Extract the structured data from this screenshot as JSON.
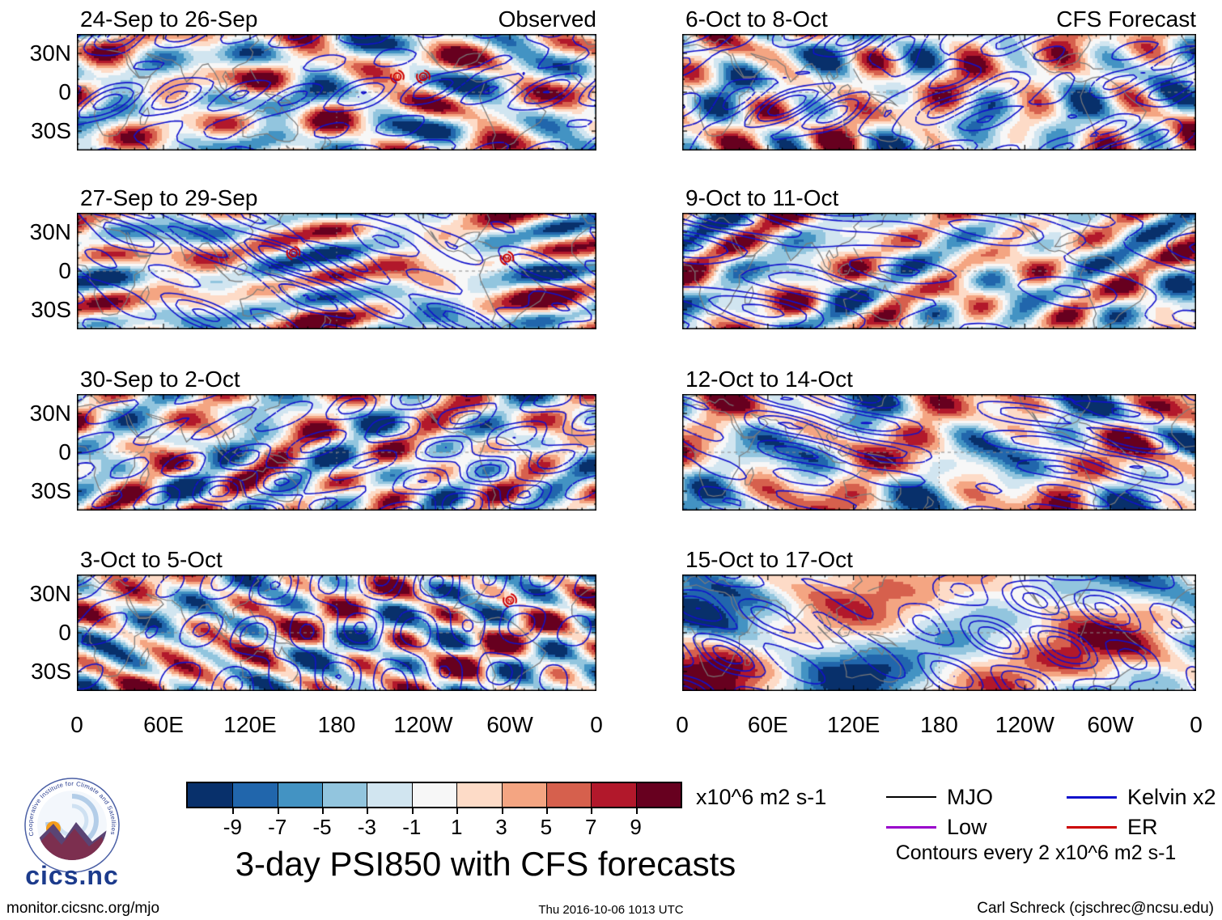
{
  "figure": {
    "title": "3-day PSI850 with CFS forecasts",
    "footer": {
      "left": "monitor.cicsnc.org/mjo",
      "center": "Thu 2016-10-06 1013 UTC",
      "right": "Carl Schreck (cjschrec@ncsu.edu)"
    },
    "logo": {
      "arc_text": "Cooperative Institute for Climate and Satellites",
      "wordmark": "cics.nc"
    }
  },
  "chart_data": {
    "type": "heatmap",
    "variable": "PSI850 anomaly (850 hPa streamfunction), 3-day means with CFS forecasts",
    "units": "x10^6 m2 s-1",
    "lat_range": [
      -45,
      45
    ],
    "lon_range": [
      0,
      360
    ],
    "columns": [
      {
        "header": "Observed"
      },
      {
        "header": "CFS Forecast"
      }
    ],
    "panels": [
      {
        "title": "24-Sep to 26-Sep",
        "corner": "Observed",
        "column": 0,
        "row": 0,
        "storms": [
          {
            "label": "U",
            "lon": 222,
            "lat": 12
          },
          {
            "label": "R",
            "lon": 240,
            "lat": 12
          }
        ]
      },
      {
        "title": "27-Sep to 29-Sep",
        "corner": "",
        "column": 0,
        "row": 1,
        "storms": [
          {
            "label": "C",
            "lon": 150,
            "lat": 14
          },
          {
            "label": "M",
            "lon": 298,
            "lat": 10
          }
        ]
      },
      {
        "title": "30-Sep to 2-Oct",
        "corner": "",
        "column": 0,
        "row": 2,
        "storms": []
      },
      {
        "title": "3-Oct to 5-Oct",
        "corner": "",
        "column": 0,
        "row": 3,
        "storms": [
          {
            "label": "N",
            "lon": 300,
            "lat": 25
          }
        ]
      },
      {
        "title": "6-Oct to 8-Oct",
        "corner": "CFS Forecast",
        "column": 1,
        "row": 0,
        "storms": []
      },
      {
        "title": "9-Oct to 11-Oct",
        "corner": "",
        "column": 1,
        "row": 1,
        "storms": []
      },
      {
        "title": "12-Oct to 14-Oct",
        "corner": "",
        "column": 1,
        "row": 2,
        "storms": []
      },
      {
        "title": "15-Oct to 17-Oct",
        "corner": "",
        "column": 1,
        "row": 3,
        "storms": []
      }
    ],
    "axes": {
      "x_ticks": [
        {
          "label": "0",
          "lon": 0
        },
        {
          "label": "60E",
          "lon": 60
        },
        {
          "label": "120E",
          "lon": 120
        },
        {
          "label": "180",
          "lon": 180
        },
        {
          "label": "120W",
          "lon": 240
        },
        {
          "label": "60W",
          "lon": 300
        },
        {
          "label": "0",
          "lon": 360
        }
      ],
      "y_ticks": [
        {
          "label": "30N",
          "lat": 30
        },
        {
          "label": "0",
          "lat": 0
        },
        {
          "label": "30S",
          "lat": -30
        }
      ]
    },
    "colorbar": {
      "levels": [
        -9,
        -7,
        -5,
        -3,
        -1,
        1,
        3,
        5,
        7,
        9
      ],
      "colors": [
        "#08306b",
        "#2166ac",
        "#4393c3",
        "#92c5de",
        "#d1e5f0",
        "#f7f7f7",
        "#fddbc7",
        "#f4a582",
        "#d6604d",
        "#b2182b",
        "#67001f"
      ],
      "units": "x10^6 m2 s-1"
    },
    "legend": {
      "items": [
        {
          "label": "MJO",
          "color": "#000000"
        },
        {
          "label": "Kelvin x2",
          "color": "#1111cc"
        },
        {
          "label": "Low",
          "color": "#9900cc"
        },
        {
          "label": "ER",
          "color": "#cc0000"
        }
      ],
      "note": "Contours every 2 x10^6 m2 s-1"
    }
  }
}
